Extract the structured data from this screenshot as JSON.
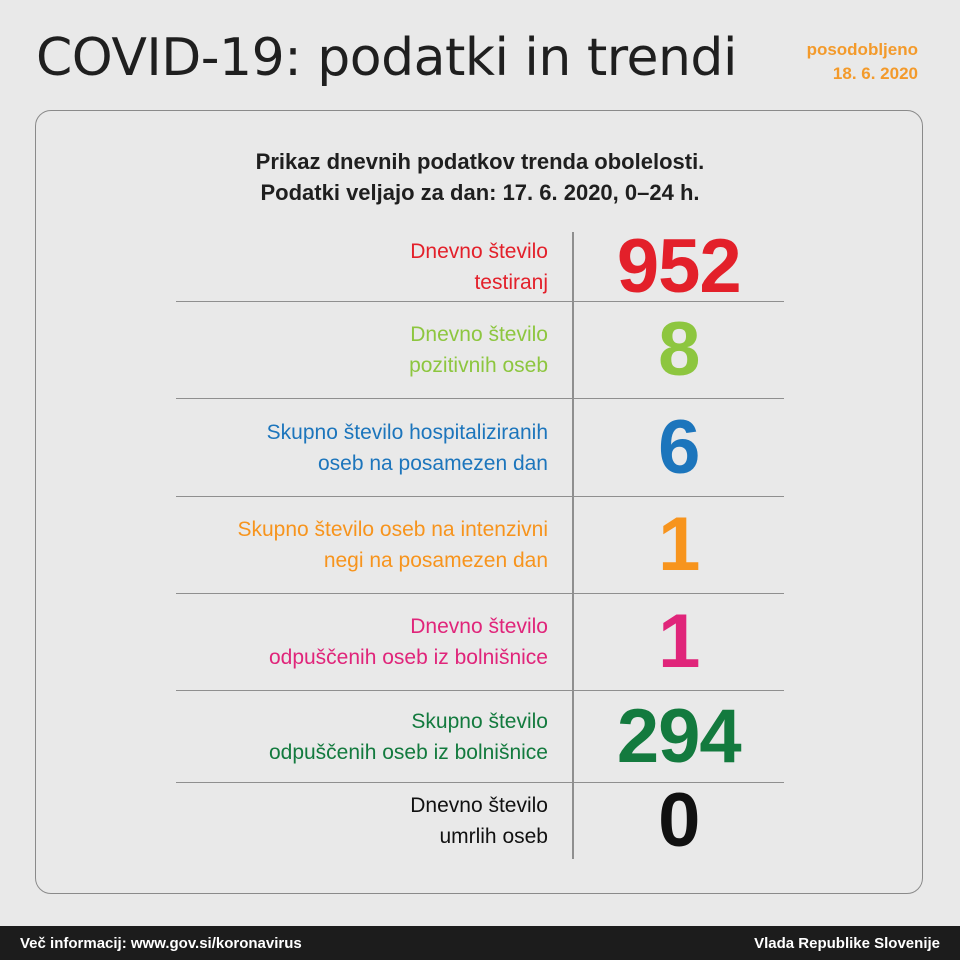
{
  "header": {
    "title": "COVID-19: podatki in trendi",
    "updated_label": "posodobljeno",
    "updated_date": "18. 6. 2020"
  },
  "card": {
    "subtitle_line1": "Prikaz dnevnih podatkov trenda obolelosti.",
    "subtitle_line2": "Podatki veljajo za dan: 17. 6. 2020, 0–24 h.",
    "rows": [
      {
        "line1": "Dnevno število",
        "line2": "testiranj",
        "value": "952",
        "color": "#e3202a"
      },
      {
        "line1": "Dnevno število",
        "line2": "pozitivnih oseb",
        "value": "8",
        "color": "#8dc63f"
      },
      {
        "line1": "Skupno število hospitaliziranih",
        "line2": "oseb na posamezen dan",
        "value": "6",
        "color": "#1c75bc"
      },
      {
        "line1": "Skupno število oseb na intenzivni",
        "line2": "negi na posamezen dan",
        "value": "1",
        "color": "#f7941d"
      },
      {
        "line1": "Dnevno število",
        "line2": "odpuščenih oseb iz bolnišnice",
        "value": "1",
        "color": "#e0257a"
      },
      {
        "line1": "Skupno število",
        "line2": "odpuščenih oseb iz bolnišnice",
        "value": "294",
        "color": "#137a3e"
      },
      {
        "line1": "Dnevno število",
        "line2": "umrlih oseb",
        "value": "0",
        "color": "#111111"
      }
    ]
  },
  "footer": {
    "more_info": "Več informacij: www.gov.si/koronavirus",
    "org": "Vlada Republike Slovenije"
  }
}
